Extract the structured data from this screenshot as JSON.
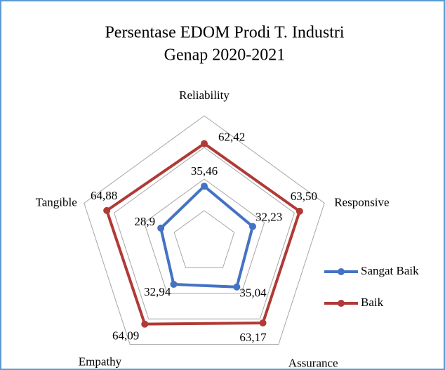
{
  "chart_data": {
    "type": "radar",
    "title": [
      "Persentase EDOM Prodi T. Industri",
      "Genap 2020-2021"
    ],
    "categories": [
      "Reliability",
      "Responsive",
      "Assurance",
      "Empathy",
      "Tangible"
    ],
    "ylim": [
      0,
      80
    ],
    "yticks": [
      0,
      20,
      40,
      60,
      80
    ],
    "grid": true,
    "legend": "right",
    "series": [
      {
        "name": "Sangat Baik",
        "color": "#4472c4",
        "values": [
          35.46,
          32.23,
          35.04,
          32.94,
          28.9
        ],
        "value_labels": [
          "35,46",
          "32,23",
          "35,04",
          "32,94",
          "28,9"
        ]
      },
      {
        "name": "Baik",
        "color": "#b03a36",
        "values": [
          62.42,
          63.5,
          63.17,
          64.09,
          64.88
        ],
        "value_labels": [
          "62,42",
          "63,50",
          "63,17",
          "64,09",
          "64,88"
        ]
      }
    ]
  }
}
